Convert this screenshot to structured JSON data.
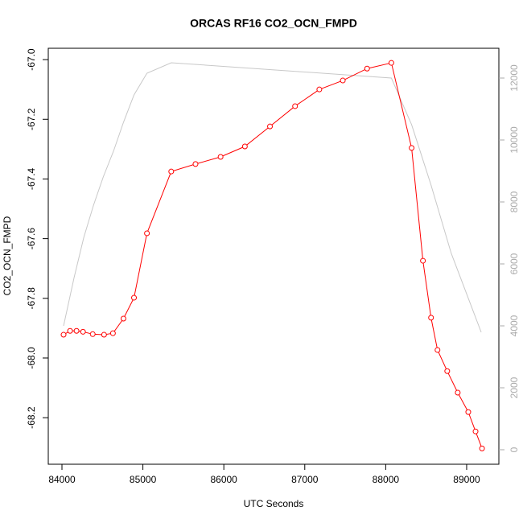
{
  "chart_data": {
    "type": "line",
    "title": "ORCAS RF16 CO2_OCN_FMPD",
    "x_label": "UTC Seconds",
    "y_label": "CO2_OCN_FMPD",
    "xlim": [
      83831,
      89398
    ],
    "xticks": [
      84000,
      85000,
      86000,
      87000,
      88000,
      89000
    ],
    "ylim": [
      -68.356,
      -66.962
    ],
    "yticks": [
      {
        "value": -67.0,
        "label": "-67.0"
      },
      -67.2,
      -67.4,
      -67.6,
      -67.8,
      {
        "value": -68.0,
        "label": "-68.0"
      },
      -68.2
    ],
    "y2lim": [
      -468,
      12961
    ],
    "y2ticks": [
      0,
      2000,
      4000,
      6000,
      8000,
      10000,
      12000
    ],
    "series": [
      {
        "color": "#ff0000",
        "markers": true,
        "x": [
          84020,
          84100,
          84180,
          84260,
          84380,
          84520,
          84630,
          84760,
          84890,
          85050,
          85350,
          85650,
          85960,
          86260,
          86570,
          86880,
          87180,
          87470,
          87770,
          88070,
          88320,
          88460,
          88560,
          88640,
          88760,
          88890,
          89020,
          89110,
          89190
        ],
        "values": [
          -67.922,
          -67.909,
          -67.909,
          -67.912,
          -67.92,
          -67.922,
          -67.917,
          -67.868,
          -67.798,
          -67.582,
          -67.375,
          -67.35,
          -67.326,
          -67.291,
          -67.224,
          -67.156,
          -67.1,
          -67.07,
          -67.03,
          -67.011,
          -67.296,
          -67.674,
          -67.865,
          -67.973,
          -68.044,
          -68.116,
          -68.181,
          -68.246,
          -68.303
        ]
      },
      {
        "color": "#c8c8c8",
        "markers": false,
        "axis": "y2",
        "x": [
          84020,
          84150,
          84270,
          84390,
          84510,
          84640,
          84760,
          84890,
          85050,
          85350,
          88070,
          88320,
          88560,
          88810,
          89180
        ],
        "values": [
          4000,
          5558,
          6857,
          7896,
          8805,
          9662,
          10571,
          11455,
          12156,
          12494,
          12000,
          10494,
          8545,
          6338,
          3792
        ]
      }
    ]
  }
}
